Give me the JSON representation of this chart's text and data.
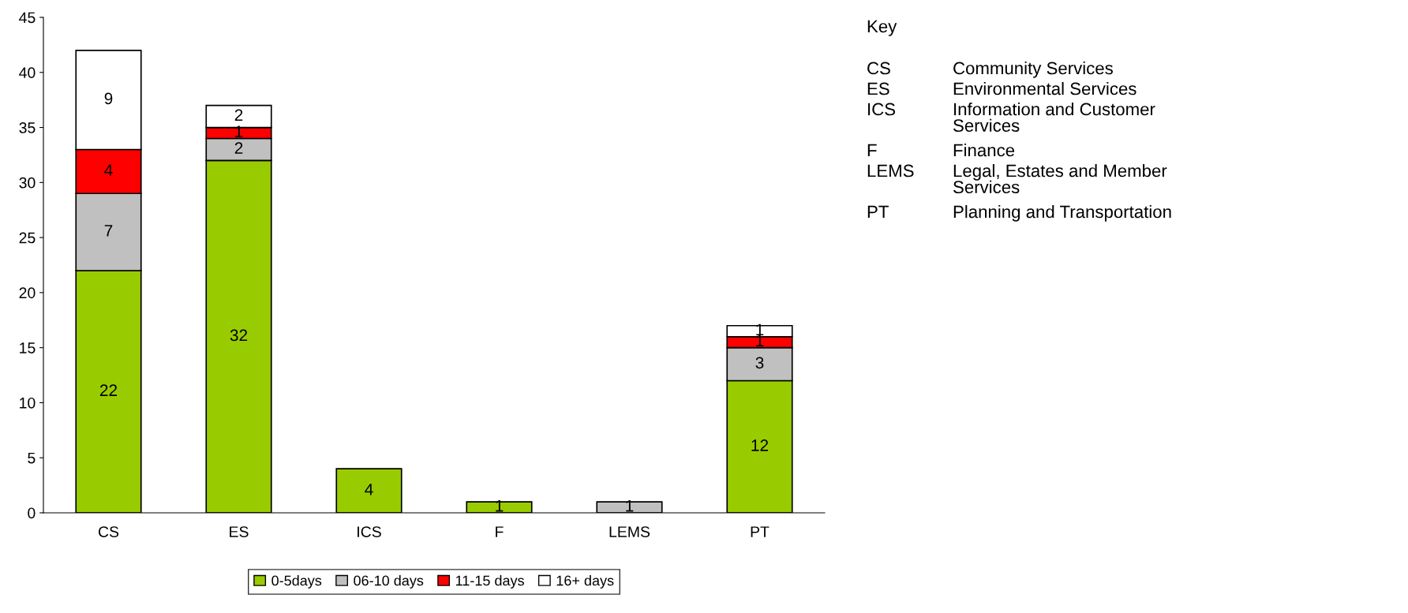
{
  "chart_data": {
    "type": "bar",
    "stacked": true,
    "data_labels": true,
    "categories": [
      "CS",
      "ES",
      "ICS",
      "F",
      "LEMS",
      "PT"
    ],
    "series": [
      {
        "name": "0-5days",
        "color": "#99cc00",
        "values": [
          22,
          32,
          4,
          1,
          null,
          12
        ]
      },
      {
        "name": "06-10 days",
        "color": "#c0c0c0",
        "values": [
          7,
          2,
          null,
          null,
          1,
          3
        ]
      },
      {
        "name": "11-15 days",
        "color": "#ff0000",
        "values": [
          4,
          1,
          null,
          null,
          null,
          1
        ]
      },
      {
        "name": "16+ days",
        "color": "#ffffff",
        "values": [
          9,
          2,
          null,
          null,
          null,
          1
        ]
      }
    ],
    "ylim": [
      0,
      45
    ],
    "yticks": [
      0,
      5,
      10,
      15,
      20,
      25,
      30,
      35,
      40,
      45
    ],
    "grid": false,
    "legend": "bottom",
    "annotations": [
      "Key",
      "CS",
      "Community Services",
      "ES",
      "Environmental Services",
      "ICS",
      "Information and Customer\nServices",
      "F",
      "Finance",
      "LEMS",
      "Legal, Estates and Member\nServices",
      "PT",
      "Planning and Transportation"
    ]
  }
}
